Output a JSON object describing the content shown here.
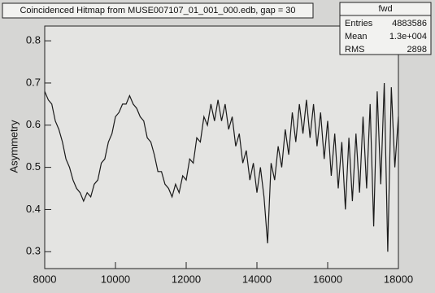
{
  "chart_data": {
    "type": "line",
    "title": "Coincidenced Hitmap from MUSE007107_01_001_000.edb, gap = 30",
    "y_label": "Asymmetry",
    "stats": {
      "name": "fwd",
      "rows": [
        [
          "Entries",
          "4883586"
        ],
        [
          "Mean",
          "1.3e+004"
        ],
        [
          "RMS",
          "2898"
        ]
      ]
    },
    "x": [
      8000,
      8100,
      8200,
      8300,
      8400,
      8500,
      8600,
      8700,
      8800,
      8900,
      9000,
      9100,
      9200,
      9300,
      9400,
      9500,
      9600,
      9700,
      9800,
      9900,
      10000,
      10100,
      10200,
      10300,
      10400,
      10500,
      10600,
      10700,
      10800,
      10900,
      11000,
      11100,
      11200,
      11300,
      11400,
      11500,
      11600,
      11700,
      11800,
      11900,
      12000,
      12100,
      12200,
      12300,
      12400,
      12500,
      12600,
      12700,
      12800,
      12900,
      13000,
      13100,
      13200,
      13300,
      13400,
      13500,
      13600,
      13700,
      13800,
      13900,
      14000,
      14100,
      14200,
      14300,
      14400,
      14500,
      14600,
      14700,
      14800,
      14900,
      15000,
      15100,
      15200,
      15300,
      15400,
      15500,
      15600,
      15700,
      15800,
      15900,
      16000,
      16100,
      16200,
      16300,
      16400,
      16500,
      16600,
      16700,
      16800,
      16900,
      17000,
      17100,
      17200,
      17300,
      17400,
      17500,
      17600,
      17700,
      17800,
      17900,
      18000
    ],
    "series": [
      {
        "name": "fwd",
        "color": "#1a1a1a",
        "values": [
          0.68,
          0.66,
          0.65,
          0.61,
          0.59,
          0.56,
          0.52,
          0.5,
          0.47,
          0.45,
          0.44,
          0.42,
          0.44,
          0.43,
          0.46,
          0.47,
          0.51,
          0.52,
          0.56,
          0.58,
          0.62,
          0.63,
          0.65,
          0.65,
          0.67,
          0.65,
          0.64,
          0.62,
          0.61,
          0.57,
          0.56,
          0.53,
          0.49,
          0.49,
          0.46,
          0.45,
          0.43,
          0.46,
          0.44,
          0.48,
          0.47,
          0.52,
          0.51,
          0.57,
          0.56,
          0.62,
          0.6,
          0.65,
          0.61,
          0.66,
          0.61,
          0.65,
          0.59,
          0.62,
          0.55,
          0.58,
          0.51,
          0.54,
          0.47,
          0.51,
          0.44,
          0.5,
          0.43,
          0.32,
          0.51,
          0.47,
          0.55,
          0.5,
          0.59,
          0.53,
          0.63,
          0.56,
          0.65,
          0.58,
          0.66,
          0.57,
          0.65,
          0.55,
          0.63,
          0.52,
          0.61,
          0.48,
          0.58,
          0.45,
          0.56,
          0.4,
          0.57,
          0.42,
          0.58,
          0.44,
          0.62,
          0.45,
          0.65,
          0.36,
          0.68,
          0.46,
          0.7,
          0.3,
          0.69,
          0.5,
          0.62
        ]
      }
    ],
    "xlim": [
      8000,
      18000
    ],
    "ylim": [
      0.26,
      0.835
    ],
    "xticks": [
      8000,
      10000,
      12000,
      14000,
      16000,
      18000
    ],
    "yticks": [
      0.3,
      0.4,
      0.5,
      0.6,
      0.7,
      0.8
    ]
  }
}
